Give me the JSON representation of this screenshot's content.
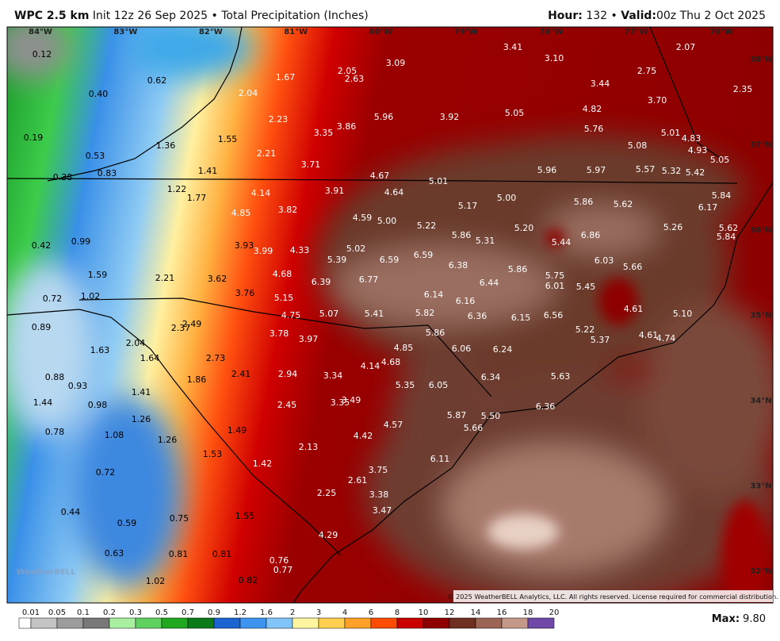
{
  "header": {
    "model": "WPC 2.5 km",
    "init": "Init 12z 26 Sep 2025",
    "separator": "•",
    "product": "Total Precipitation (Inches)",
    "hour_label": "Hour:",
    "hour": "132",
    "valid_label": "Valid:",
    "valid": "00z Thu 2 Oct 2025"
  },
  "map": {
    "longitudes": [
      "84°W",
      "83°W",
      "82°W",
      "81°W",
      "80°W",
      "79°W",
      "78°W",
      "77°W",
      "76°W"
    ],
    "latitudes": [
      "38°N",
      "37°N",
      "36°N",
      "35°N",
      "34°N",
      "33°N",
      "32°N"
    ],
    "labels": [
      "0.12",
      "0.62",
      "1.67",
      "2.05",
      "2.63",
      "3.09",
      "3.41",
      "3.10",
      "2.07",
      "2.75",
      "3.44",
      "2.35",
      "0.40",
      "2.04",
      "4.82",
      "3.70",
      "5.96",
      "3.92",
      "5.05",
      "2.23",
      "3.86",
      "3.35",
      "5.76",
      "0.19",
      "1.36",
      "1.55",
      "5.01",
      "4.83",
      "5.08",
      "4.93",
      "2.21",
      "0.53",
      "3.71",
      "5.05",
      "0.38",
      "0.83",
      "1.41",
      "4.67",
      "5.96",
      "5.97",
      "5.57",
      "5.32",
      "5.42",
      "5.01",
      "1.22",
      "4.14",
      "3.91",
      "4.64",
      "1.77",
      "5.00",
      "5.84",
      "5.86",
      "5.62",
      "5.17",
      "6.17",
      "3.82",
      "4.85",
      "4.59",
      "5.00",
      "5.22",
      "5.20",
      "5.26",
      "5.62",
      "5.86",
      "6.86",
      "5.84",
      "0.99",
      "5.31",
      "5.44",
      "0.42",
      "3.93",
      "5.02",
      "3.99",
      "4.33",
      "5.39",
      "6.59",
      "6.59",
      "6.03",
      "6.38",
      "5.66",
      "5.86",
      "1.59",
      "2.21",
      "3.62",
      "4.68",
      "6.39",
      "6.77",
      "5.75",
      "6.44",
      "6.01",
      "5.45",
      "1.02",
      "0.72",
      "3.76",
      "5.15",
      "6.14",
      "6.16",
      "4.61",
      "4.75",
      "5.07",
      "5.41",
      "5.82",
      "6.36",
      "6.15",
      "6.56",
      "5.10",
      "0.89",
      "2.49",
      "2.37",
      "5.22",
      "3.78",
      "5.86",
      "4.61",
      "4.74",
      "3.97",
      "5.37",
      "1.63",
      "2.04",
      "4.85",
      "6.06",
      "6.24",
      "1.64",
      "2.73",
      "4.68",
      "4.14",
      "2.41",
      "2.94",
      "3.34",
      "5.63",
      "0.88",
      "1.86",
      "6.34",
      "0.93",
      "5.35",
      "6.05",
      "1.41",
      "3.49",
      "3.35",
      "1.44",
      "0.98",
      "2.45",
      "6.36",
      "5.87",
      "5.50",
      "1.26",
      "4.57",
      "5.66",
      "0.78",
      "1.49",
      "1.08",
      "4.42",
      "1.26",
      "2.13",
      "1.53",
      "6.11",
      "1.42",
      "3.75",
      "0.72",
      "2.61",
      "2.25",
      "3.38",
      "0.44",
      "3.47",
      "1.55",
      "0.75",
      "0.59",
      "4.29",
      "0.63",
      "0.81",
      "0.81",
      "0.76",
      "0.77",
      "1.02",
      "0.82"
    ],
    "logo": "WeatherBELL",
    "copyright": "© 2025 WeatherBELL Analytics, LLC. All rights reserved. License required for commercial distribution."
  },
  "colorbar": {
    "labels": [
      "0.01",
      "0.05",
      "0.1",
      "0.2",
      "0.3",
      "0.5",
      "0.7",
      "0.9",
      "1.2",
      "1.6",
      "2",
      "3",
      "4",
      "6",
      "8",
      "10",
      "12",
      "14",
      "16",
      "18",
      "20"
    ],
    "colors": [
      "#ffffff",
      "#c4c4c4",
      "#9c9c9c",
      "#787878",
      "#a8f0a0",
      "#60d060",
      "#20a820",
      "#0c7a18",
      "#1c64d0",
      "#3c94ee",
      "#80c4f8",
      "#fff4a0",
      "#ffd050",
      "#ffa028",
      "#ff4c00",
      "#c80000",
      "#8e0000",
      "#6e3020",
      "#9c6454",
      "#c49888",
      "#7048a8"
    ]
  },
  "max": {
    "label": "Max:",
    "value": "9.80"
  }
}
